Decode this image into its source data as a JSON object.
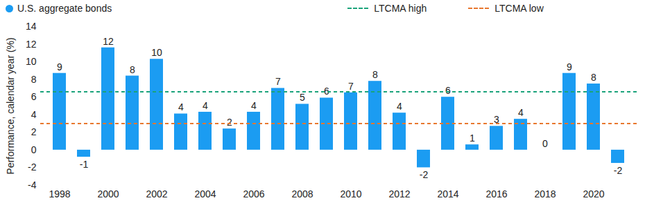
{
  "chart_data": {
    "type": "bar",
    "y_label": "Performance, calendar year (%)",
    "categories": [
      "1998",
      null,
      "2000",
      null,
      "2002",
      null,
      "2004",
      null,
      "2006",
      null,
      "2008",
      null,
      "2010",
      null,
      "2012",
      null,
      "2014",
      null,
      "2016",
      null,
      "2018",
      null,
      "2020",
      null
    ],
    "series": [
      {
        "name": "U.S. aggregate bonds",
        "type": "bar",
        "marker": "circle",
        "color": "#1b9cf2",
        "values": [
          8.7,
          -0.8,
          11.6,
          8.4,
          10.3,
          4.1,
          4.3,
          2.4,
          4.3,
          7.0,
          5.2,
          5.9,
          6.5,
          7.8,
          4.2,
          -2.0,
          6.0,
          0.6,
          2.7,
          3.5,
          0.0,
          8.7,
          7.5,
          -1.5
        ],
        "value_labels": [
          "9",
          "-1",
          "12",
          "8",
          "10",
          "4",
          "4",
          "2",
          "4",
          "7",
          "5",
          "6",
          "7",
          "8",
          "4",
          "-2",
          "6",
          "1",
          "3",
          "4",
          "0",
          "9",
          "8",
          "-2"
        ]
      },
      {
        "name": "LTCMA high",
        "type": "line",
        "line_style": "dashed",
        "color": "#1aa37a",
        "values": [
          6.6,
          6.6,
          6.6,
          6.6,
          6.6,
          6.6,
          6.6,
          6.6,
          6.6,
          6.6,
          6.6,
          6.6,
          6.6,
          6.6,
          6.6,
          6.6,
          6.6,
          6.6,
          6.6,
          6.6,
          6.6,
          6.6,
          6.6,
          6.6
        ]
      },
      {
        "name": "LTCMA low",
        "type": "line",
        "line_style": "dashed",
        "color": "#e8772e",
        "values": [
          3.0,
          3.0,
          3.0,
          3.0,
          3.0,
          3.0,
          3.0,
          3.0,
          3.0,
          3.0,
          3.0,
          3.0,
          3.0,
          3.0,
          3.0,
          3.0,
          3.0,
          3.0,
          3.0,
          3.0,
          3.0,
          3.0,
          3.0,
          3.0
        ]
      }
    ],
    "ylim": [
      -4,
      14
    ],
    "yticks": [
      -4,
      -2,
      0,
      2,
      4,
      6,
      8,
      10,
      12,
      14
    ],
    "grid": false,
    "legend": "top",
    "data_labels": true
  }
}
